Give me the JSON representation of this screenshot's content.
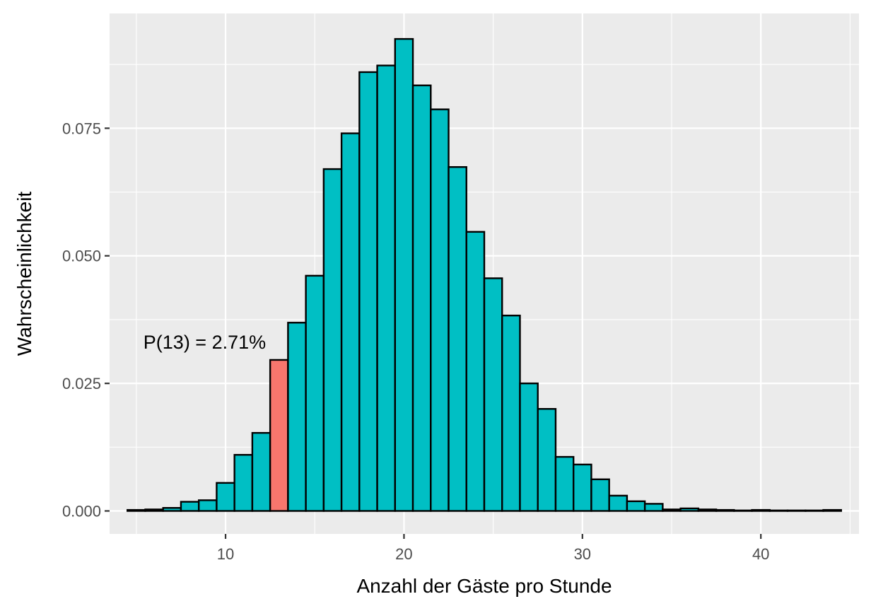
{
  "chart_data": {
    "type": "bar",
    "title": "",
    "xlabel": "Anzahl der Gäste pro Stunde",
    "ylabel": "Wahrscheinlichkeit",
    "x": [
      5,
      6,
      7,
      8,
      9,
      10,
      11,
      12,
      13,
      14,
      15,
      16,
      17,
      18,
      19,
      20,
      21,
      22,
      23,
      24,
      25,
      26,
      27,
      28,
      29,
      30,
      31,
      32,
      33,
      34,
      35,
      36,
      37,
      38,
      39,
      40,
      41,
      42,
      43,
      44
    ],
    "values": [
      0.0002,
      0.0003,
      0.0006,
      0.0018,
      0.0021,
      0.0055,
      0.011,
      0.0153,
      0.0296,
      0.0369,
      0.0461,
      0.067,
      0.074,
      0.086,
      0.0873,
      0.0925,
      0.0834,
      0.0787,
      0.0674,
      0.0547,
      0.0456,
      0.0383,
      0.025,
      0.02,
      0.0106,
      0.0091,
      0.0062,
      0.003,
      0.0019,
      0.0014,
      0.0003,
      0.0005,
      0.0003,
      0.0002,
      0.0001,
      0.0002,
      0.0001,
      0.0001,
      0.0001,
      0.0002
    ],
    "highlight": {
      "x": 13,
      "color": "#F8766D",
      "label": "P(13) = 2.71%"
    },
    "bar_color": "#00BFC4",
    "bar_outline": "#000000",
    "xlim": [
      3.5,
      45.5
    ],
    "ylim": [
      -0.0045,
      0.0975
    ],
    "x_ticks": [
      10,
      20,
      30,
      40
    ],
    "x_tick_labels": [
      "10",
      "20",
      "30",
      "40"
    ],
    "x_minor_ticks": [
      5,
      15,
      25,
      35,
      45
    ],
    "y_ticks": [
      0.0,
      0.025,
      0.05,
      0.075
    ],
    "y_tick_labels": [
      "0.000",
      "0.025",
      "0.050",
      "0.075"
    ],
    "y_minor_ticks": [
      0.0125,
      0.0375,
      0.0625,
      0.0875
    ],
    "grid": true,
    "legend": "none",
    "panel_background": "#EBEBEB"
  }
}
